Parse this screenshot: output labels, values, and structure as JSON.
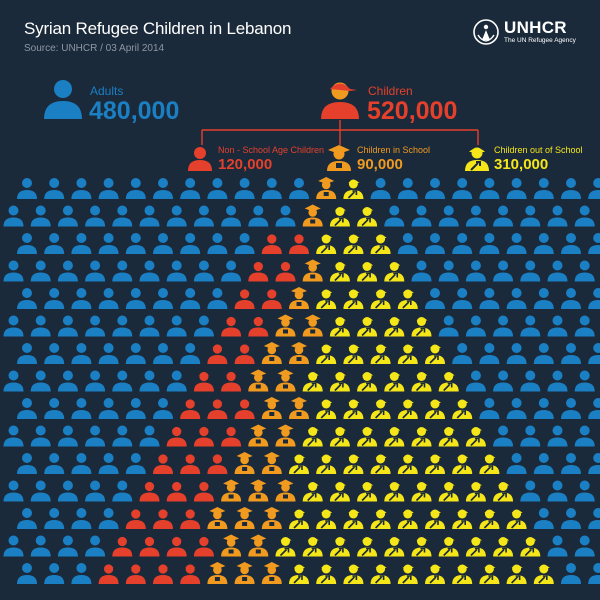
{
  "header": {
    "title": "Syrian Refugee Children in Lebanon",
    "source": "Source: UNHCR / 03 April 2014"
  },
  "logo": {
    "name": "UNHCR",
    "tagline": "The UN Refugee Agency",
    "icon": "unhcr-emblem-icon"
  },
  "colors": {
    "background": "#1b2a3a",
    "adults": "#1b7fc4",
    "children": "#e5402b",
    "non_school": "#e5402b",
    "in_school": "#f09a20",
    "out_of_school": "#f5e619",
    "connector": "#e5402b"
  },
  "chart_data": {
    "type": "pictogram",
    "groups": [
      {
        "key": "adults",
        "label": "Adults",
        "value": 480000,
        "value_text": "480,000",
        "icon": "person-icon"
      },
      {
        "key": "children",
        "label": "Children",
        "value": 520000,
        "value_text": "520,000",
        "icon": "child-cap-icon",
        "breakdown": [
          {
            "key": "non_school",
            "label": "Non - School Age Children",
            "value": 120000,
            "value_text": "120,000",
            "icon": "child-icon"
          },
          {
            "key": "in_school",
            "label": "Children in School",
            "value": 90000,
            "value_text": "90,000",
            "icon": "graduation-cap-icon"
          },
          {
            "key": "out_of_school",
            "label": "Children out of School",
            "value": 310000,
            "value_text": "310,000",
            "icon": "worker-wrench-icon"
          }
        ]
      }
    ]
  }
}
